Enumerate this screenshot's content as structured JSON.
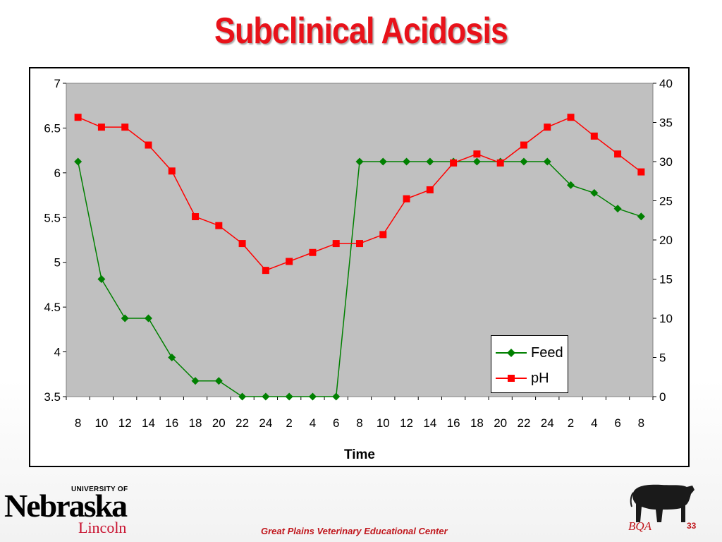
{
  "slide": {
    "title": "Subclinical Acidosis",
    "footer": "Great Plains Veterinary Educational Center",
    "page_number": "33"
  },
  "logos": {
    "university_prefix": "UNIVERSITY OF",
    "university_name": "Nebraska",
    "university_campus": "Lincoln",
    "bqa_mark": "BQA"
  },
  "colors": {
    "title": "#e8121a",
    "feed_series": "#008000",
    "ph_series": "#ff0000",
    "plot_background": "#c0c0c0",
    "footer": "#c0161c"
  },
  "chart_data": {
    "type": "line",
    "xlabel": "Time",
    "categories": [
      "8",
      "10",
      "12",
      "14",
      "16",
      "18",
      "20",
      "22",
      "24",
      "2",
      "4",
      "6",
      "8",
      "10",
      "12",
      "14",
      "16",
      "18",
      "20",
      "22",
      "24",
      "2",
      "4",
      "6",
      "8"
    ],
    "left_axis": {
      "ylim": [
        3.5,
        7
      ],
      "ticks": [
        "3.5",
        "4",
        "4.5",
        "5",
        "5.5",
        "6",
        "6.5",
        "7"
      ]
    },
    "right_axis": {
      "ylim": [
        0,
        40
      ],
      "ticks": [
        "0",
        "5",
        "10",
        "15",
        "20",
        "25",
        "30",
        "35",
        "40"
      ]
    },
    "grid": false,
    "legend_position": "center-right",
    "series": [
      {
        "name": "Feed",
        "axis": "right",
        "marker": "diamond",
        "color": "#008000",
        "values": [
          30,
          15,
          10,
          10,
          5,
          2,
          2,
          0,
          0,
          0,
          0,
          0,
          30,
          30,
          30,
          30,
          30,
          30,
          30,
          30,
          30,
          27,
          26,
          24,
          23
        ]
      },
      {
        "name": "pH",
        "axis": "left",
        "marker": "square",
        "color": "#ff0000",
        "values": [
          6.62,
          6.51,
          6.51,
          6.31,
          6.02,
          5.51,
          5.41,
          5.21,
          4.91,
          5.01,
          5.11,
          5.21,
          5.21,
          5.31,
          5.71,
          5.81,
          6.11,
          6.21,
          6.11,
          6.31,
          6.51,
          6.62,
          6.41,
          6.21,
          6.01
        ]
      }
    ]
  }
}
